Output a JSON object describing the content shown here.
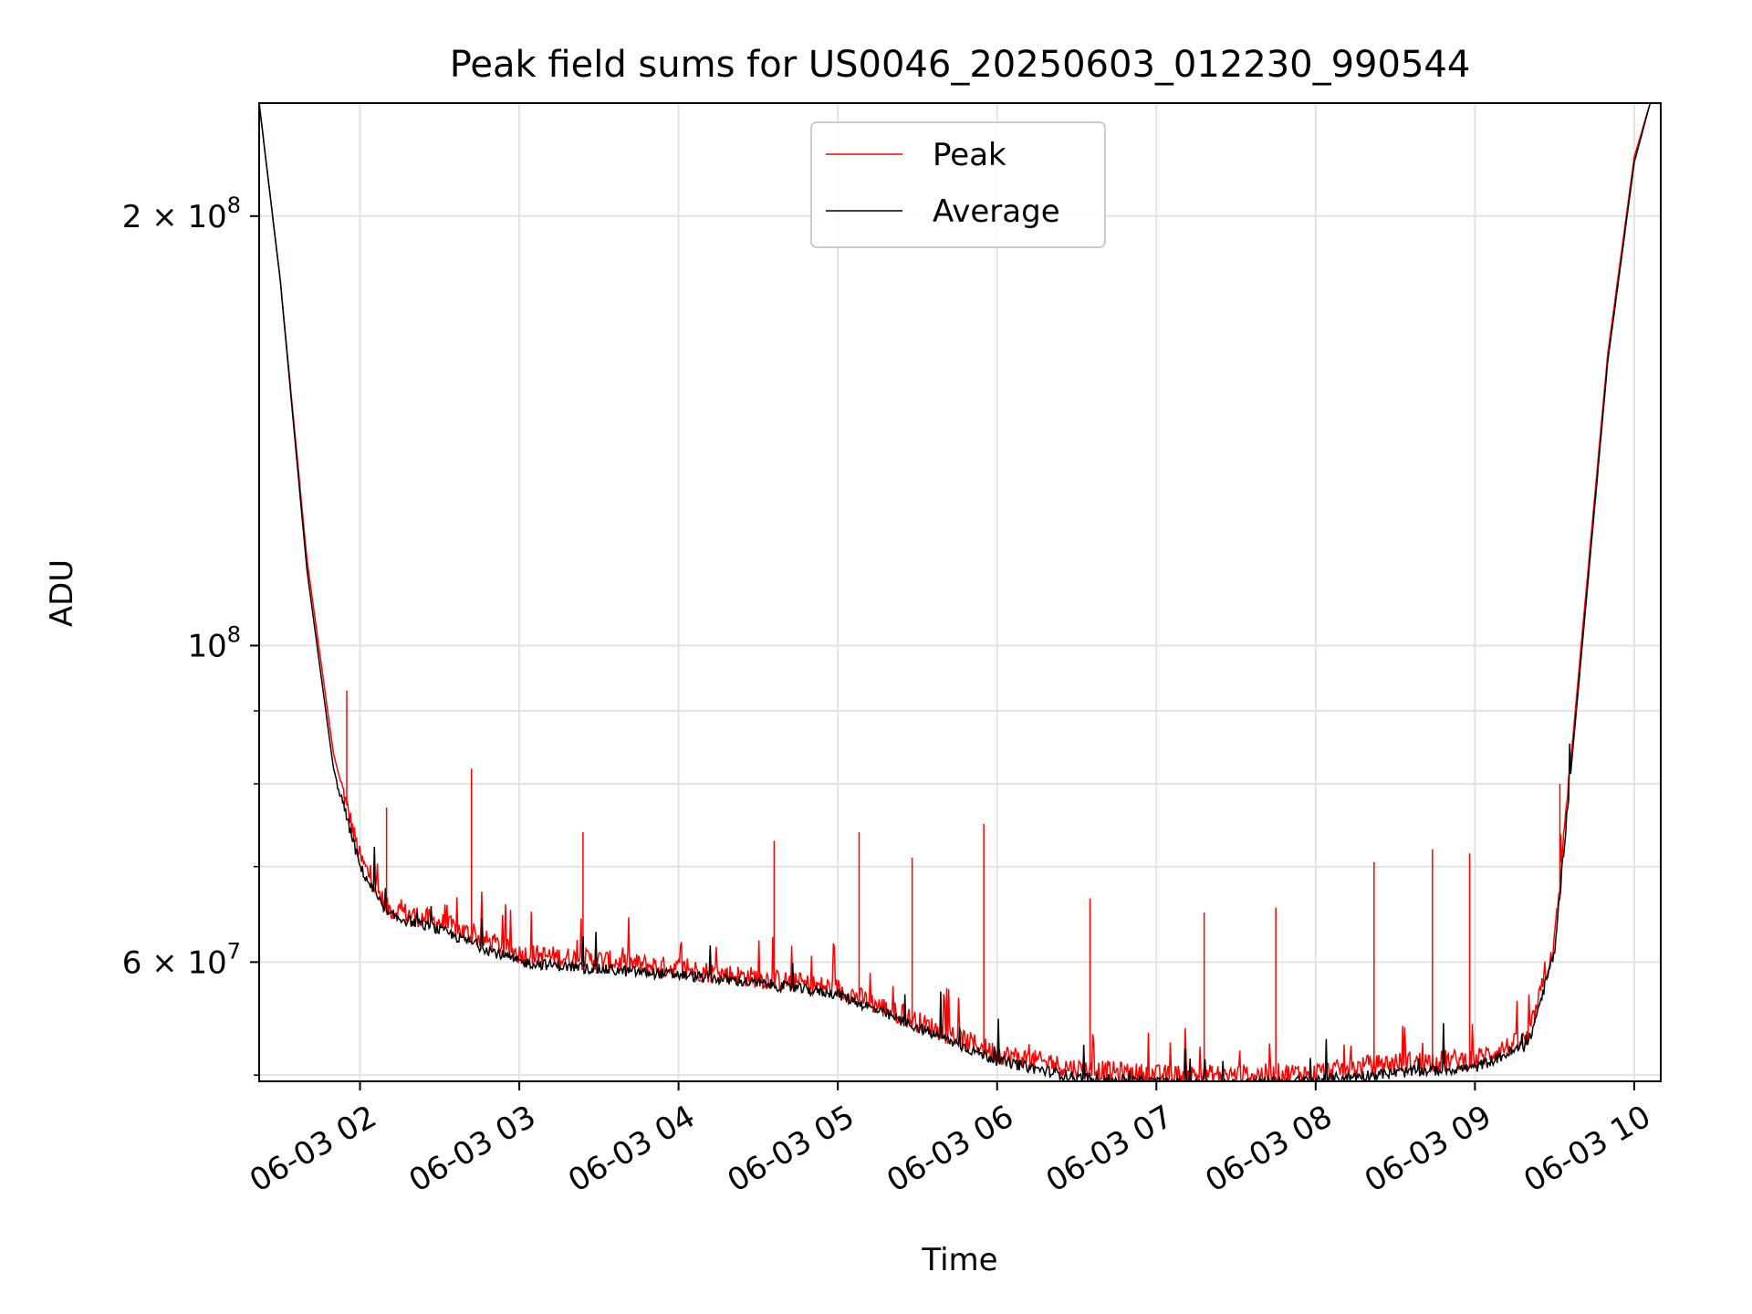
{
  "chart_data": {
    "type": "line",
    "title": "Peak field sums for US0046_20250603_012230_990544",
    "xlabel": "Time",
    "ylabel": "ADU",
    "x_range": [
      "2025-06-03 01:22",
      "2025-06-03 10:10"
    ],
    "ylim": [
      49500000,
      240000000
    ],
    "yscale": "log",
    "x_ticks": [
      "06-03 02",
      "06-03 03",
      "06-03 04",
      "06-03 05",
      "06-03 06",
      "06-03 07",
      "06-03 08",
      "06-03 09",
      "06-03 10"
    ],
    "y_tick_labels": [
      {
        "value": 200000000,
        "base": "2",
        "exp": "8",
        "times": true
      },
      {
        "value": 100000000,
        "base": "10",
        "exp": "8",
        "times": false
      },
      {
        "value": 60000000,
        "base": "6",
        "exp": "7",
        "times": true
      }
    ],
    "y_minor_ticks": [
      50000000,
      70000000,
      80000000,
      90000000
    ],
    "grid": true,
    "legend": {
      "position": "upper center"
    },
    "series": [
      {
        "name": "Peak",
        "color": "#ff0000",
        "points": [
          [
            "2025-06-03 01:22",
            240000000
          ],
          [
            "2025-06-03 01:30",
            180000000
          ],
          [
            "2025-06-03 01:40",
            115000000
          ],
          [
            "2025-06-03 01:50",
            84000000
          ],
          [
            "2025-06-03 02:00",
            71000000
          ],
          [
            "2025-06-03 02:10",
            65500000
          ],
          [
            "2025-06-03 02:30",
            64000000
          ],
          [
            "2025-06-03 03:00",
            60800000
          ],
          [
            "2025-06-03 03:30",
            60200000
          ],
          [
            "2025-06-03 04:00",
            59400000
          ],
          [
            "2025-06-03 04:30",
            58500000
          ],
          [
            "2025-06-03 05:00",
            57500000
          ],
          [
            "2025-06-03 05:30",
            54500000
          ],
          [
            "2025-06-03 06:00",
            51800000
          ],
          [
            "2025-06-03 06:30",
            50500000
          ],
          [
            "2025-06-03 07:00",
            50000000
          ],
          [
            "2025-06-03 07:30",
            50000000
          ],
          [
            "2025-06-03 08:00",
            50200000
          ],
          [
            "2025-06-03 08:30",
            51000000
          ],
          [
            "2025-06-03 09:00",
            51300000
          ],
          [
            "2025-06-03 09:20",
            53000000
          ],
          [
            "2025-06-03 09:30",
            62000000
          ],
          [
            "2025-06-03 09:40",
            100000000
          ],
          [
            "2025-06-03 09:50",
            160000000
          ],
          [
            "2025-06-03 10:00",
            220000000
          ],
          [
            "2025-06-03 10:06",
            240000000
          ]
        ],
        "spikes": [
          [
            "2025-06-03 01:55",
            93000000
          ],
          [
            "2025-06-03 02:10",
            77000000
          ],
          [
            "2025-06-03 02:42",
            82000000
          ],
          [
            "2025-06-03 03:24",
            74000000
          ],
          [
            "2025-06-03 04:36",
            73000000
          ],
          [
            "2025-06-03 05:08",
            74000000
          ],
          [
            "2025-06-03 05:28",
            71000000
          ],
          [
            "2025-06-03 05:55",
            75000000
          ],
          [
            "2025-06-03 06:35",
            66500000
          ],
          [
            "2025-06-03 07:18",
            65000000
          ],
          [
            "2025-06-03 07:45",
            65500000
          ],
          [
            "2025-06-03 08:22",
            70500000
          ],
          [
            "2025-06-03 08:44",
            72000000
          ],
          [
            "2025-06-03 08:58",
            71500000
          ],
          [
            "2025-06-03 09:32",
            80000000
          ]
        ]
      },
      {
        "name": "Average",
        "color": "#000000",
        "points": [
          [
            "2025-06-03 01:22",
            240000000
          ],
          [
            "2025-06-03 01:30",
            180000000
          ],
          [
            "2025-06-03 01:40",
            113000000
          ],
          [
            "2025-06-03 01:50",
            82000000
          ],
          [
            "2025-06-03 02:00",
            70000000
          ],
          [
            "2025-06-03 02:10",
            64800000
          ],
          [
            "2025-06-03 02:30",
            63200000
          ],
          [
            "2025-06-03 03:00",
            60000000
          ],
          [
            "2025-06-03 03:30",
            59300000
          ],
          [
            "2025-06-03 04:00",
            58800000
          ],
          [
            "2025-06-03 04:30",
            58000000
          ],
          [
            "2025-06-03 05:00",
            57000000
          ],
          [
            "2025-06-03 05:30",
            54000000
          ],
          [
            "2025-06-03 06:00",
            51200000
          ],
          [
            "2025-06-03 06:30",
            49800000
          ],
          [
            "2025-06-03 07:00",
            49400000
          ],
          [
            "2025-06-03 07:30",
            49300000
          ],
          [
            "2025-06-03 08:00",
            49600000
          ],
          [
            "2025-06-03 08:30",
            50200000
          ],
          [
            "2025-06-03 09:00",
            50600000
          ],
          [
            "2025-06-03 09:20",
            52500000
          ],
          [
            "2025-06-03 09:30",
            61000000
          ],
          [
            "2025-06-03 09:40",
            98000000
          ],
          [
            "2025-06-03 09:50",
            158000000
          ],
          [
            "2025-06-03 10:00",
            218000000
          ],
          [
            "2025-06-03 10:06",
            240000000
          ]
        ]
      }
    ]
  }
}
